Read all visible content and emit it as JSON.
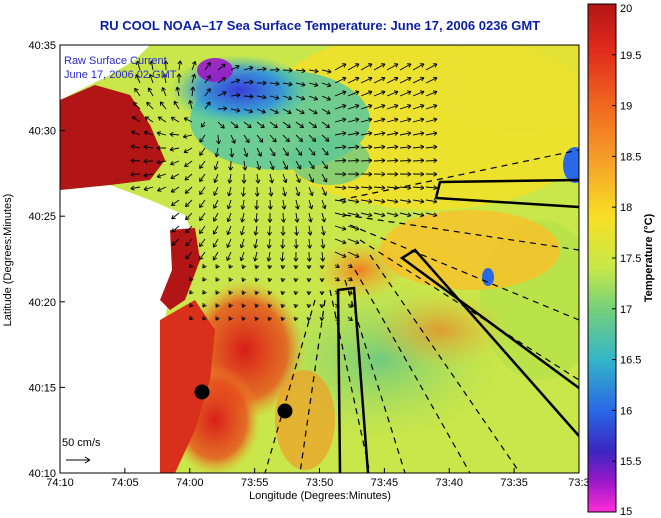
{
  "title": "RU COOL  NOAA–17  Sea Surface Temperature:  June 17, 2006 0236 GMT",
  "legend": {
    "line1": "Raw Surface Current",
    "line2": "June 17, 2006 02 GMT"
  },
  "x_axis": {
    "label": "Longitude (Degrees:Minutes)",
    "ticks": [
      "74:10",
      "74:05",
      "74:00",
      "73:55",
      "73:50",
      "73:45",
      "73:40",
      "73:35",
      "73:3"
    ]
  },
  "y_axis": {
    "label": "Latitude (Degrees:Minutes)",
    "ticks": [
      "40:35",
      "40:30",
      "40:25",
      "40:20",
      "40:15",
      "40:10"
    ]
  },
  "colorbar": {
    "label": "Temperature (°C)",
    "ticks": [
      "20",
      "19.5",
      "19",
      "18.5",
      "18",
      "17.5",
      "17",
      "16.5",
      "16",
      "15.5",
      "15"
    ],
    "colors": [
      "#b21515",
      "#e02a1c",
      "#f0681e",
      "#f7a62b",
      "#f7e023",
      "#c7e84a",
      "#76d07a",
      "#33b6c8",
      "#2a68e6",
      "#3a26c0",
      "#9a18c8",
      "#ff2cd8"
    ]
  },
  "scale_arrow": {
    "label": "50 cm/s"
  },
  "icons": [
    "current-vector-arrows",
    "buoy-markers",
    "sst-raster",
    "coastline"
  ]
}
